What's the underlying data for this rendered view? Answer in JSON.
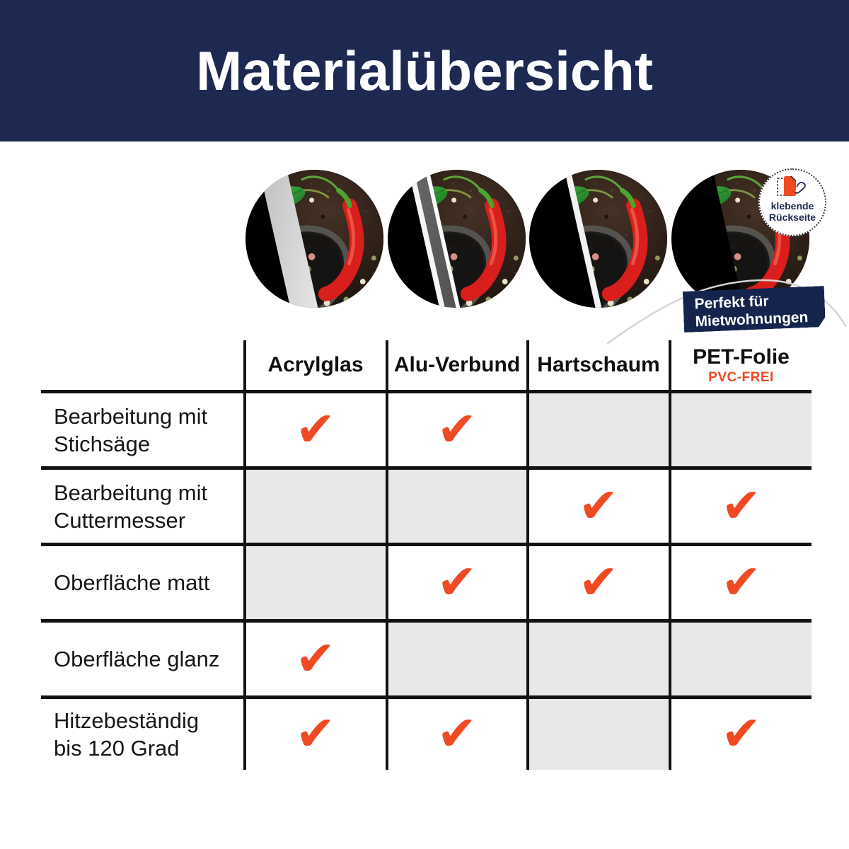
{
  "header": {
    "title": "Materialübersicht",
    "bg_color": "#1d2951",
    "text_color": "#ffffff"
  },
  "badge": {
    "line1": "klebende",
    "line2": "Rückseite"
  },
  "banner": {
    "line1": "Perfekt für",
    "line2": "Mietwohnungen",
    "bg_color": "#15244c"
  },
  "table": {
    "columns": [
      {
        "label": "Acrylglas",
        "sublabel": ""
      },
      {
        "label": "Alu-Verbund",
        "sublabel": ""
      },
      {
        "label": "Hartschaum",
        "sublabel": ""
      },
      {
        "label": "PET-Folie",
        "sublabel": "PVC-FREI"
      }
    ],
    "rows": [
      {
        "label": "Bearbeitung mit Stichsäge",
        "label_lines": [
          "Bearbeitung mit",
          "Stichsäge"
        ],
        "checks": [
          true,
          true,
          false,
          false
        ]
      },
      {
        "label": "Bearbeitung mit Cuttermesser",
        "label_lines": [
          "Bearbeitung mit",
          "Cuttermesser"
        ],
        "checks": [
          false,
          false,
          true,
          true
        ]
      },
      {
        "label": "Oberfläche matt",
        "label_lines": [
          "Oberfläche matt"
        ],
        "checks": [
          false,
          true,
          true,
          true
        ]
      },
      {
        "label": "Oberfläche glanz",
        "label_lines": [
          "Oberfläche glanz"
        ],
        "checks": [
          true,
          false,
          false,
          false
        ]
      },
      {
        "label": "Hitzebeständig bis 120 Grad",
        "label_lines": [
          "Hitzebeständig",
          "bis 120 Grad"
        ],
        "checks": [
          true,
          true,
          false,
          true
        ]
      }
    ],
    "check_glyph": "✔",
    "colors": {
      "check": "#f04a22",
      "na_cell_bg": "#e8e8e8",
      "grid": "#121212",
      "pvc_free_text": "#f04a22"
    }
  }
}
